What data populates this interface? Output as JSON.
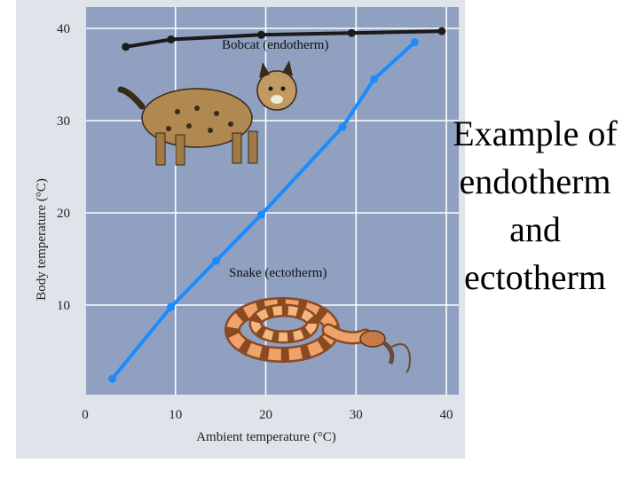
{
  "caption": {
    "lines": [
      "Example of",
      "endotherm",
      "and",
      "ectotherm"
    ]
  },
  "illustrations": [
    {
      "name": "bobcat-illustration"
    },
    {
      "name": "snake-illustration"
    }
  ],
  "colors": {
    "plot_background": "#8fa0c0",
    "frame_background": "#dfe3ea",
    "grid": "#ffffff",
    "bobcat_line": "#1a1a1a",
    "snake_line": "#1a8cff"
  },
  "chart_data": {
    "type": "line",
    "xlabel": "Ambient temperature (°C)",
    "ylabel": "Body temperature (°C)",
    "xlim": [
      0,
      40
    ],
    "ylim": [
      0,
      40
    ],
    "x_ticks": [
      0,
      10,
      20,
      30,
      40
    ],
    "y_ticks": [
      10,
      20,
      30,
      40
    ],
    "grid": true,
    "series": [
      {
        "name": "Bobcat (endotherm)",
        "color": "#1a1a1a",
        "points": [
          [
            4.5,
            38.0
          ],
          [
            9.5,
            38.8
          ],
          [
            19.5,
            39.3
          ],
          [
            29.5,
            39.5
          ],
          [
            39.5,
            39.7
          ]
        ]
      },
      {
        "name": "Snake (ectotherm)",
        "color": "#1a8cff",
        "points": [
          [
            3.0,
            2.0
          ],
          [
            9.5,
            9.8
          ],
          [
            14.5,
            14.8
          ],
          [
            19.5,
            19.8
          ],
          [
            28.5,
            29.3
          ],
          [
            32.0,
            34.5
          ],
          [
            36.5,
            38.5
          ]
        ]
      }
    ]
  }
}
